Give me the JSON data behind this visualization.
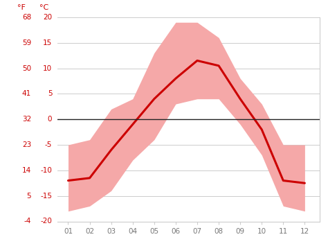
{
  "months": [
    1,
    2,
    3,
    4,
    5,
    6,
    7,
    8,
    9,
    10,
    11,
    12
  ],
  "month_labels": [
    "01",
    "02",
    "03",
    "04",
    "05",
    "06",
    "07",
    "08",
    "09",
    "10",
    "11",
    "12"
  ],
  "mean_temp_c": [
    -12,
    -11.5,
    -6,
    -1,
    4,
    8,
    11.5,
    10.5,
    4,
    -2,
    -12,
    -12.5
  ],
  "max_temp_c": [
    -5,
    -4,
    2,
    4,
    13,
    19,
    19,
    16,
    8,
    3,
    -5,
    -5
  ],
  "min_temp_c": [
    -18,
    -17,
    -14,
    -8,
    -4,
    3,
    4,
    4,
    -1,
    -7,
    -17,
    -18
  ],
  "line_color": "#cc0000",
  "band_color": "#f5a8a8",
  "zero_line_color": "#222222",
  "left_ticks_f": [
    68,
    59,
    50,
    41,
    32,
    23,
    14,
    5,
    -4
  ],
  "left_ticks_c": [
    20,
    15,
    10,
    5,
    0,
    -5,
    -10,
    -15,
    -20
  ],
  "ylim_c": [
    -20,
    20
  ],
  "background_color": "#ffffff",
  "grid_color": "#cccccc",
  "tick_color": "#cc0000",
  "label_color": "#777777"
}
